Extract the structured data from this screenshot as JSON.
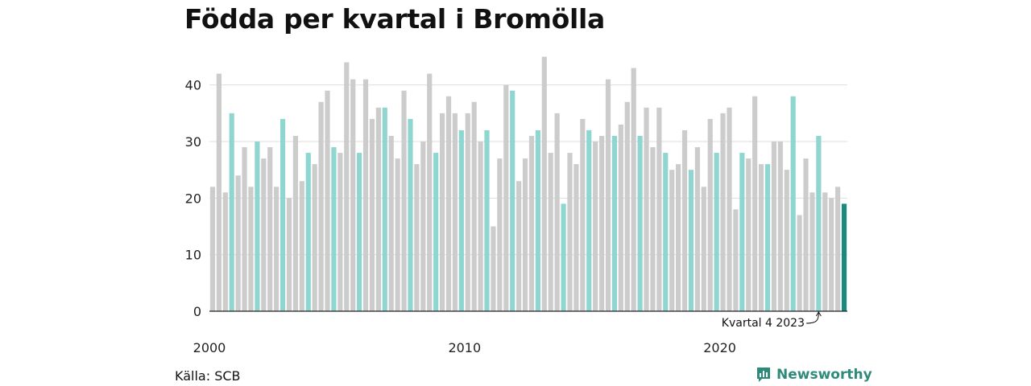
{
  "title": "Födda per kvartal i Bromölla",
  "source": "Källa: SCB",
  "brand": {
    "name": "Newsworthy",
    "icon": "bar-chart-logo-icon"
  },
  "colors": {
    "default_bar": "#cccccc",
    "q1_bar": "#8fd6d0",
    "highlight_bar": "#1a8a7e",
    "grid": "#dddddd",
    "brand": "#2e8b7a"
  },
  "chart_data": {
    "type": "bar",
    "title": "Födda per kvartal i Bromölla",
    "xlabel": "",
    "ylabel": "",
    "ylim": [
      0,
      45
    ],
    "yticks": [
      0,
      10,
      20,
      30,
      40
    ],
    "xtick_labels": [
      "2000",
      "2010",
      "2020"
    ],
    "grid": true,
    "start_year": 2000,
    "quarters_per_year": 4,
    "values": [
      22,
      42,
      21,
      35,
      24,
      29,
      22,
      30,
      27,
      29,
      22,
      34,
      20,
      31,
      23,
      28,
      26,
      37,
      39,
      29,
      28,
      44,
      41,
      28,
      41,
      34,
      36,
      36,
      31,
      27,
      39,
      34,
      26,
      30,
      42,
      28,
      35,
      38,
      35,
      32,
      35,
      37,
      30,
      32,
      15,
      27,
      40,
      39,
      23,
      27,
      31,
      32,
      45,
      28,
      35,
      19,
      28,
      26,
      34,
      32,
      30,
      31,
      41,
      31,
      33,
      37,
      43,
      31,
      36,
      29,
      36,
      28,
      25,
      26,
      32,
      25,
      29,
      22,
      34,
      28,
      35,
      36,
      18,
      28,
      27,
      38,
      26,
      26,
      30,
      30,
      25,
      38,
      17,
      27,
      21,
      31,
      21,
      20,
      22,
      19
    ],
    "annotation": {
      "text": "Kvartal 4 2023",
      "quarter_index": 95
    },
    "highlight_index": 99
  }
}
